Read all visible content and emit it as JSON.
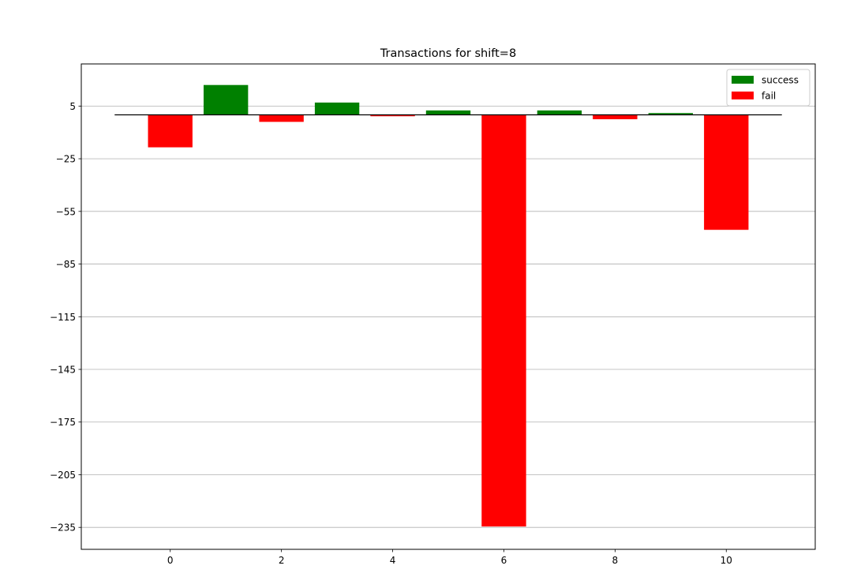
{
  "chart_data": {
    "type": "bar",
    "title": "Transactions for shift=8",
    "xlabel": "",
    "ylabel": "",
    "xlim": [
      -1.6,
      11.6
    ],
    "ylim": [
      -247.5,
      29
    ],
    "xticks": [
      0,
      2,
      4,
      6,
      8,
      10
    ],
    "yticks": [
      5,
      -25,
      -55,
      -85,
      -115,
      -145,
      -175,
      -205,
      -235
    ],
    "grid": "y",
    "legend_position": "top-right",
    "baseline": {
      "value": 0,
      "from": -1,
      "to": 11,
      "color": "#000000"
    },
    "series": [
      {
        "name": "success",
        "color": "#008000",
        "points": [
          {
            "x": 1,
            "y": 17
          },
          {
            "x": 3,
            "y": 7
          },
          {
            "x": 5,
            "y": 2.5
          },
          {
            "x": 7,
            "y": 2.5
          },
          {
            "x": 9,
            "y": 1
          }
        ]
      },
      {
        "name": "fail",
        "color": "#ff0000",
        "points": [
          {
            "x": 0,
            "y": -18.5
          },
          {
            "x": 2,
            "y": -4
          },
          {
            "x": 4,
            "y": -0.8
          },
          {
            "x": 6,
            "y": -234.5
          },
          {
            "x": 8,
            "y": -2.5
          },
          {
            "x": 10,
            "y": -65.5
          }
        ]
      }
    ],
    "bar_width": 0.8
  }
}
